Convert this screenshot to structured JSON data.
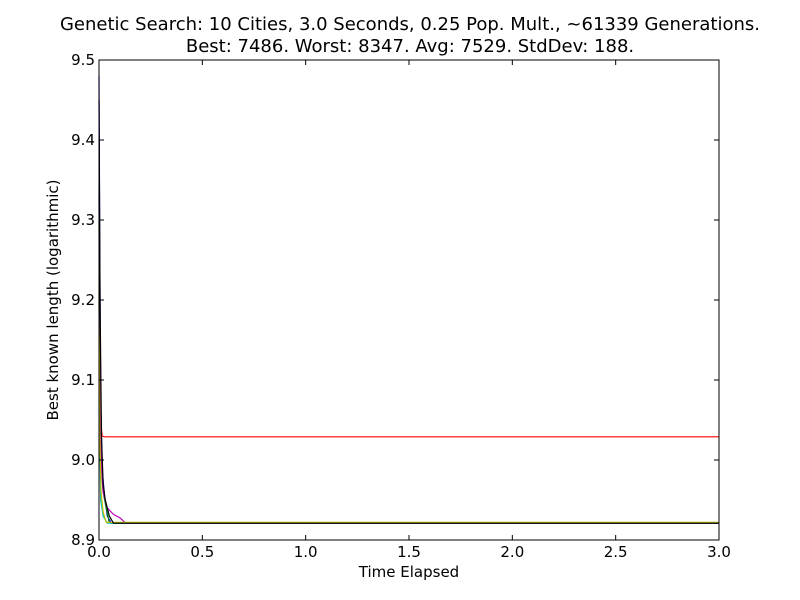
{
  "chart_data": {
    "type": "line",
    "title_lines": [
      "Genetic Search: 10 Cities, 3.0 Seconds, 0.25 Pop. Mult., ~61339 Generations.",
      "Best: 7486. Worst: 8347. Avg: 7529. StdDev: 188."
    ],
    "xlabel": "Time Elapsed",
    "ylabel": "Best known length (logarithmic)",
    "xlim": [
      0.0,
      3.0
    ],
    "ylim": [
      8.9,
      9.5
    ],
    "x_ticks": [
      "0.0",
      "0.5",
      "1.0",
      "1.5",
      "2.0",
      "2.5",
      "3.0"
    ],
    "y_ticks": [
      "8.9",
      "9.0",
      "9.1",
      "9.2",
      "9.3",
      "9.4",
      "9.5"
    ],
    "grid": false,
    "legend": "none",
    "series": [
      {
        "color": "#0000ff",
        "x": [
          0,
          0.004,
          0.008,
          0.015,
          0.025,
          0.04,
          0.06,
          3.0
        ],
        "y": [
          9.48,
          9.25,
          9.08,
          8.99,
          8.96,
          8.93,
          8.921,
          8.921
        ]
      },
      {
        "color": "#008000",
        "x": [
          0,
          0.004,
          0.01,
          0.02,
          0.035,
          0.05,
          3.0
        ],
        "y": [
          9.3,
          9.1,
          9.0,
          8.96,
          8.94,
          8.921,
          8.921
        ]
      },
      {
        "color": "#ff0000",
        "x": [
          0,
          0.003,
          0.008,
          0.015,
          0.025,
          3.0
        ],
        "y": [
          9.2,
          9.1,
          9.05,
          9.03,
          9.029,
          9.029
        ]
      },
      {
        "color": "#00bfbf",
        "x": [
          0,
          0.003,
          0.008,
          0.02,
          0.04,
          3.0
        ],
        "y": [
          9.34,
          9.05,
          8.95,
          8.93,
          8.921,
          8.921
        ]
      },
      {
        "color": "#bf00bf",
        "x": [
          0,
          0.005,
          0.01,
          0.02,
          0.04,
          0.07,
          0.1,
          0.13,
          3.0
        ],
        "y": [
          9.33,
          9.1,
          9.0,
          8.96,
          8.94,
          8.932,
          8.928,
          8.921,
          8.921
        ]
      },
      {
        "color": "#bfbf00",
        "x": [
          0,
          0.004,
          0.01,
          0.02,
          0.035,
          3.0
        ],
        "y": [
          9.22,
          9.03,
          8.96,
          8.935,
          8.922,
          8.922
        ]
      },
      {
        "color": "#000000",
        "x": [
          0,
          0.005,
          0.012,
          0.02,
          0.03,
          0.05,
          0.07,
          3.0
        ],
        "y": [
          9.45,
          9.2,
          9.03,
          8.97,
          8.95,
          8.93,
          8.921,
          8.921
        ]
      }
    ]
  }
}
